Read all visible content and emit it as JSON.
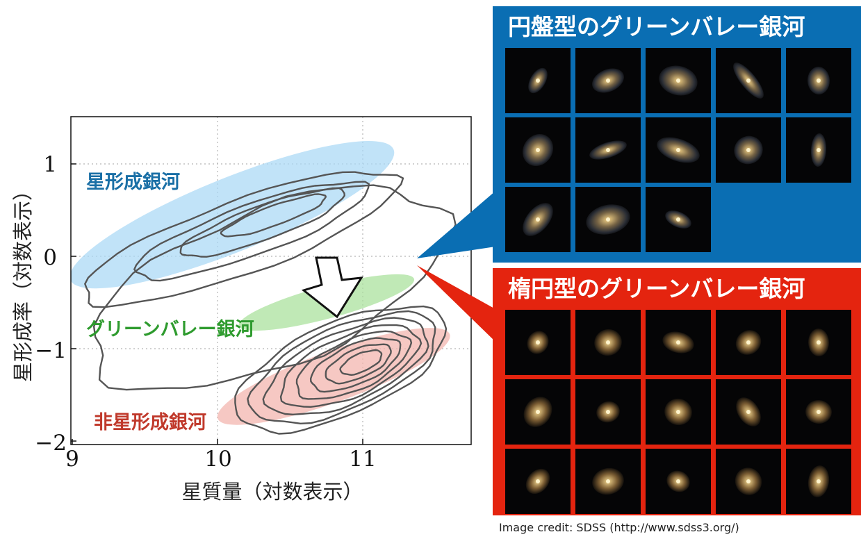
{
  "chart_data": {
    "type": "contour",
    "xlabel": "星質量（対数表示）",
    "ylabel": "星形成率（対数表示）",
    "xlim": [
      9,
      11.75
    ],
    "ylim": [
      -2,
      1.5
    ],
    "x_ticks": [
      "9",
      "10",
      "11"
    ],
    "y_ticks": [
      "1",
      "0",
      "−1",
      "−2"
    ],
    "grid": true,
    "regions": [
      {
        "label": "星形成銀河",
        "color": "#1a6fa6",
        "fill": "#a9d8f5",
        "center": [
          10.1,
          0.45
        ],
        "width": 2.4,
        "height": 0.8,
        "angle_deg": 22
      },
      {
        "label": "グリーンバレー銀河",
        "color": "#2e9b2e",
        "fill": "#a8e09a",
        "center": [
          10.75,
          -0.5
        ],
        "width": 1.25,
        "height": 0.35,
        "angle_deg": 15
      },
      {
        "label": "非星形成銀河",
        "color": "#c0392b",
        "fill": "#f2b3ac",
        "center": [
          10.8,
          -1.3
        ],
        "width": 1.7,
        "height": 0.55,
        "angle_deg": 20
      }
    ],
    "arrow": {
      "from": [
        10.65,
        0.0
      ],
      "to": [
        10.85,
        -0.55
      ]
    }
  },
  "panels": {
    "disk": {
      "title": "円盤型のグリーンバレー銀河",
      "color": "#0a6eb3",
      "count": 13
    },
    "elliptical": {
      "title": "楕円型のグリーンバレー銀河",
      "color": "#e4240f",
      "count": 15
    }
  },
  "credit": "Image credit: SDSS (http://www.sdss3.org/)"
}
